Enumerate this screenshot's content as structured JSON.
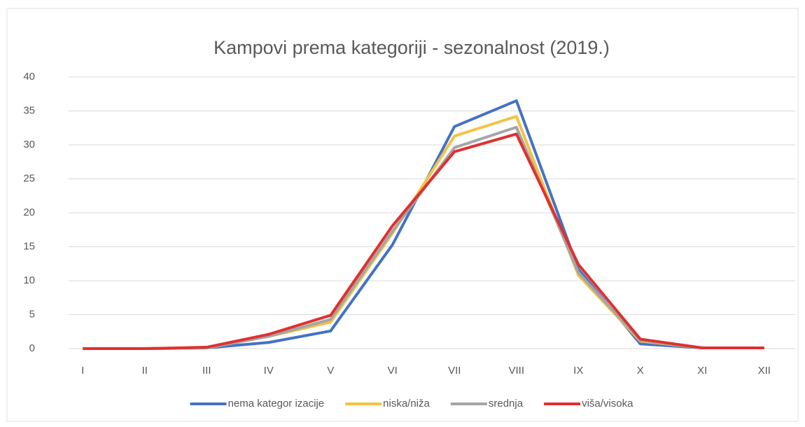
{
  "chart_data": {
    "type": "line",
    "title": "Kampovi prema kategoriji - sezonalnost (2019.)",
    "categories": [
      "I",
      "II",
      "III",
      "IV",
      "V",
      "VI",
      "VII",
      "VIII",
      "IX",
      "X",
      "XI",
      "XII"
    ],
    "series": [
      {
        "name": "nema kategor izacije",
        "color": "#4472c4",
        "values": [
          0,
          0,
          0.1,
          0.9,
          2.6,
          15.3,
          32.7,
          36.5,
          11.7,
          0.7,
          0.1,
          0.1
        ]
      },
      {
        "name": "niska/niža",
        "color": "#f5c242",
        "values": [
          0,
          0,
          0.1,
          1.8,
          3.9,
          17,
          31.3,
          34.2,
          10.8,
          1.1,
          0.1,
          0.1
        ]
      },
      {
        "name": "srednja",
        "color": "#a5a5a5",
        "values": [
          0,
          0,
          0.1,
          1.8,
          4.3,
          17.3,
          29.6,
          32.6,
          11.2,
          1.2,
          0.1,
          0.1
        ]
      },
      {
        "name": "viša/visoka",
        "color": "#e03030",
        "values": [
          0,
          0,
          0.2,
          2.1,
          4.9,
          18.1,
          29,
          31.6,
          12.4,
          1.4,
          0.1,
          0.1
        ]
      }
    ],
    "ylim": [
      0,
      40
    ],
    "yticks": [
      0,
      5,
      10,
      15,
      20,
      25,
      30,
      35,
      40
    ],
    "grid": true,
    "legend": "bottom"
  }
}
